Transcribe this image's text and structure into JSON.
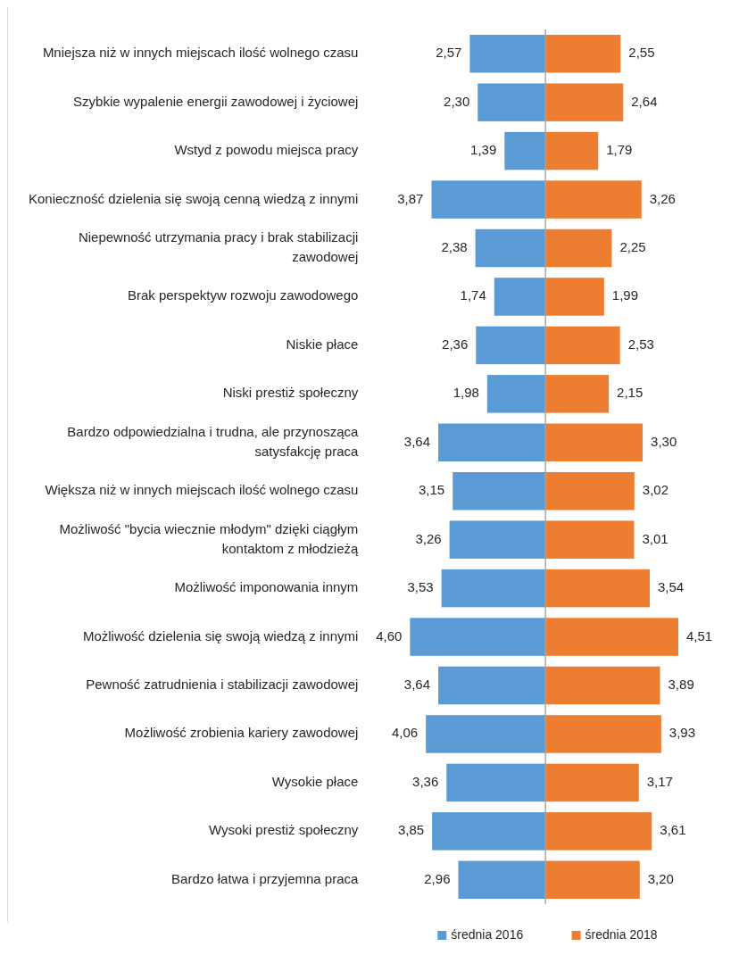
{
  "chart_data": [
    {
      "type": "bar",
      "orientation": "horizontal",
      "categories": [
        "Mniejsza niż w innych miejscach ilość wolnego czasu",
        "Szybkie wypalenie energii zawodowej i życiowej",
        "Wstyd z powodu miejsca pracy",
        "Konieczność dzielenia się swoją cenną wiedzą z innymi",
        "Niepewność utrzymania pracy i brak stabilizacji zawodowej",
        "Brak perspektyw rozwoju zawodowego",
        "Niskie płace",
        "Niski prestiż społeczny",
        "Bardzo odpowiedzialna i trudna, ale przynosząca satysfakcję praca",
        "Większa niż w innych miejscach ilość wolnego czasu",
        "Możliwość \"bycia wiecznie młodym\" dzięki ciągłym kontaktom z młodzieżą",
        "Możliwość imponowania innym",
        "Możliwość dzielenia się swoją wiedzą z innymi",
        "Pewność zatrudnienia i stabilizacji zawodowej",
        "Możliwość zrobienia kariery zawodowej",
        "Wysokie płace",
        "Wysoki prestiż społeczny",
        "Bardzo łatwa i przyjemna praca"
      ],
      "series": [
        {
          "name": "średnia 2016",
          "color": "#5b9bd5",
          "values": [
            2.57,
            2.3,
            1.39,
            3.87,
            2.38,
            1.74,
            2.36,
            1.98,
            3.64,
            3.15,
            3.26,
            3.53,
            4.6,
            3.64,
            4.06,
            3.36,
            3.85,
            2.96
          ],
          "value_labels": [
            "2,57",
            "2,30",
            "1,39",
            "3,87",
            "2,38",
            "1,74",
            "2,36",
            "1,98",
            "3,64",
            "3,15",
            "3,26",
            "3,53",
            "4,60",
            "3,64",
            "4,06",
            "3,36",
            "3,85",
            "2,96"
          ]
        }
      ],
      "xlim": [
        4.6,
        0
      ],
      "tick_labels": "y",
      "legend": "bottom"
    },
    {
      "type": "bar",
      "orientation": "horizontal",
      "categories": [
        null,
        null,
        null,
        null,
        null,
        null,
        null,
        null,
        null,
        null,
        null,
        null,
        null,
        null,
        null,
        null,
        null,
        null
      ],
      "series": [
        {
          "name": "średnia 2018",
          "color": "#ed7d31",
          "values": [
            2.55,
            2.64,
            1.79,
            3.26,
            2.25,
            1.99,
            2.53,
            2.15,
            3.3,
            3.02,
            3.01,
            3.54,
            4.51,
            3.89,
            3.93,
            3.17,
            3.61,
            3.2
          ],
          "value_labels": [
            "2,55",
            "2,64",
            "1,79",
            "3,26",
            "2,25",
            "1,99",
            "2,53",
            "2,15",
            "3,30",
            "3,02",
            "3,01",
            "3,54",
            "4,51",
            "3,89",
            "3,93",
            "3,17",
            "3,61",
            "3,20"
          ]
        }
      ],
      "xlim": [
        0,
        4.51
      ],
      "legend": "bottom"
    }
  ]
}
